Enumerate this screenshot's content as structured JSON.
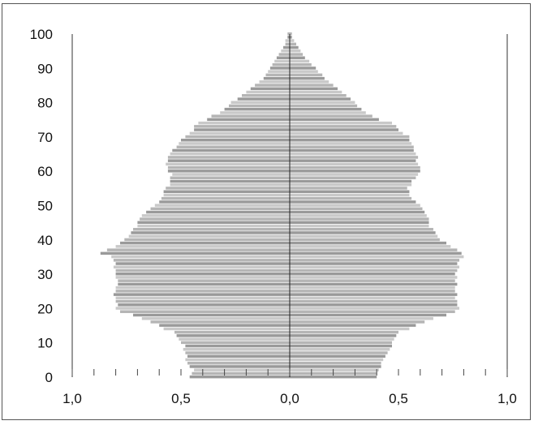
{
  "chart_data": {
    "type": "bar",
    "orientation": "horizontal",
    "subtype": "population-pyramid",
    "title": "",
    "xlabel": "",
    "ylabel": "",
    "y_ticks": [
      "0",
      "10",
      "20",
      "30",
      "40",
      "50",
      "60",
      "70",
      "80",
      "90",
      "100"
    ],
    "x_tick_labels": [
      "1,0",
      "0,5",
      "0,0",
      "0,5",
      "1,0"
    ],
    "xlim": [
      -1.0,
      1.0
    ],
    "ylim": [
      0,
      100
    ],
    "grid": false,
    "legend": "none",
    "bar_color": "#b5b5b5",
    "categories": [
      "0",
      "1",
      "2",
      "3",
      "4",
      "5",
      "6",
      "7",
      "8",
      "9",
      "10",
      "11",
      "12",
      "13",
      "14",
      "15",
      "16",
      "17",
      "18",
      "19",
      "20",
      "21",
      "22",
      "23",
      "24",
      "25",
      "26",
      "27",
      "28",
      "29",
      "30",
      "31",
      "32",
      "33",
      "34",
      "35",
      "36",
      "37",
      "38",
      "39",
      "40",
      "41",
      "42",
      "43",
      "44",
      "45",
      "46",
      "47",
      "48",
      "49",
      "50",
      "51",
      "52",
      "53",
      "54",
      "55",
      "56",
      "57",
      "58",
      "59",
      "60",
      "61",
      "62",
      "63",
      "64",
      "65",
      "66",
      "67",
      "68",
      "69",
      "70",
      "71",
      "72",
      "73",
      "74",
      "75",
      "76",
      "77",
      "78",
      "79",
      "80",
      "81",
      "82",
      "83",
      "84",
      "85",
      "86",
      "87",
      "88",
      "89",
      "90",
      "91",
      "92",
      "93",
      "94",
      "95",
      "96",
      "97",
      "98",
      "99",
      "100"
    ],
    "series": [
      {
        "side": "left",
        "values": [
          0.46,
          0.45,
          0.44,
          0.46,
          0.47,
          0.48,
          0.47,
          0.48,
          0.49,
          0.48,
          0.5,
          0.51,
          0.52,
          0.53,
          0.58,
          0.6,
          0.64,
          0.68,
          0.72,
          0.78,
          0.8,
          0.79,
          0.8,
          0.8,
          0.81,
          0.8,
          0.8,
          0.79,
          0.79,
          0.8,
          0.8,
          0.8,
          0.81,
          0.8,
          0.81,
          0.82,
          0.87,
          0.84,
          0.8,
          0.78,
          0.76,
          0.74,
          0.73,
          0.72,
          0.7,
          0.7,
          0.69,
          0.68,
          0.66,
          0.64,
          0.62,
          0.6,
          0.59,
          0.58,
          0.58,
          0.57,
          0.55,
          0.55,
          0.55,
          0.54,
          0.56,
          0.56,
          0.57,
          0.56,
          0.56,
          0.55,
          0.54,
          0.52,
          0.51,
          0.5,
          0.48,
          0.46,
          0.44,
          0.44,
          0.42,
          0.38,
          0.36,
          0.32,
          0.3,
          0.28,
          0.27,
          0.24,
          0.22,
          0.2,
          0.18,
          0.16,
          0.14,
          0.12,
          0.11,
          0.1,
          0.09,
          0.08,
          0.07,
          0.06,
          0.05,
          0.04,
          0.03,
          0.02,
          0.02,
          0.01,
          0.01
        ]
      },
      {
        "side": "right",
        "values": [
          0.4,
          0.4,
          0.41,
          0.42,
          0.42,
          0.43,
          0.44,
          0.45,
          0.46,
          0.47,
          0.47,
          0.48,
          0.49,
          0.5,
          0.55,
          0.58,
          0.62,
          0.66,
          0.72,
          0.76,
          0.78,
          0.77,
          0.77,
          0.76,
          0.77,
          0.76,
          0.76,
          0.77,
          0.76,
          0.77,
          0.76,
          0.77,
          0.78,
          0.77,
          0.78,
          0.8,
          0.79,
          0.77,
          0.74,
          0.72,
          0.69,
          0.68,
          0.67,
          0.66,
          0.64,
          0.64,
          0.64,
          0.63,
          0.62,
          0.61,
          0.6,
          0.58,
          0.56,
          0.55,
          0.55,
          0.54,
          0.56,
          0.56,
          0.58,
          0.59,
          0.6,
          0.6,
          0.59,
          0.58,
          0.59,
          0.58,
          0.57,
          0.57,
          0.56,
          0.55,
          0.55,
          0.52,
          0.5,
          0.49,
          0.47,
          0.41,
          0.38,
          0.35,
          0.33,
          0.31,
          0.3,
          0.28,
          0.26,
          0.24,
          0.22,
          0.2,
          0.18,
          0.16,
          0.15,
          0.13,
          0.12,
          0.1,
          0.09,
          0.07,
          0.06,
          0.05,
          0.04,
          0.03,
          0.02,
          0.01,
          0.01
        ]
      }
    ]
  }
}
